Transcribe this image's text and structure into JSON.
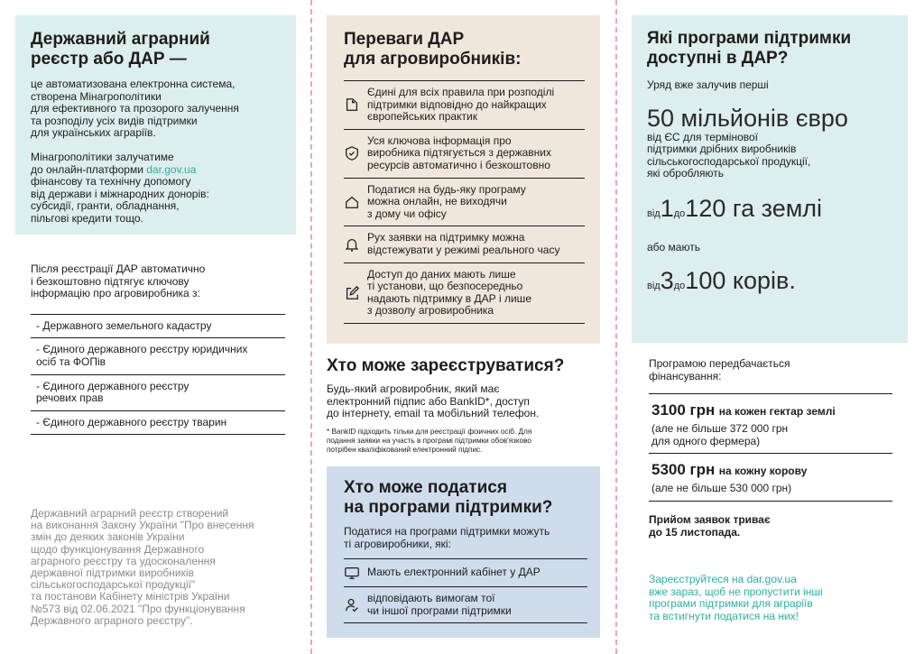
{
  "colors": {
    "teal_box": "#dceeed",
    "beige_box": "#efe6dc",
    "blue_box": "#cedcec",
    "accent_teal": "#2bb0a0",
    "divider_pink": "#e6a4c8"
  },
  "left": {
    "title": "Державний аграрний\nреєстр або ДАР —",
    "intro": "це автоматизована електронна система,\nстворена Мінагрополітики\nдля ефективного та прозорого залучення\nта розподілу усіх видів підтримки\nдля українських аграріїв.",
    "para2_before": "Мінагрополітики залучатиме\nдо онлайн-платформи ",
    "para2_link": "dar.gov.ua",
    "para2_after": "\nфінансову та технічну допомогу\nвід держави і міжнародних донорів:\nсубсидії, гранти, обладнання,\nпільгові кредити тощо.",
    "registry_intro": "Після реєстрації ДАР автоматично\nі безкоштовно підтягує ключову\nінформацію про агровиробника з:",
    "registries": [
      "- Державного земельного кадастру",
      "- Єдиного державного реєстру юридичних\n   осіб та ФОПів",
      "- Єдиного державного реєстру\n   речових прав",
      "- Єдиного державного реєстру тварин"
    ],
    "legal": "Державний аграрний реєстр створений\nна виконання Закону України \"Про внесення\nзмін до деяких законів України\nщодо функціонування Державного\nаграрного реєстру та удосконалення\nдержавної підтримки виробників\nсільськогосподарської продукції\"\nта постанови Кабінету міністрів України\n№573 від 02.06.2021 \"Про функціонування\nДержавного аграрного реєстру\"."
  },
  "middle": {
    "benefits_title": "Переваги ДАР\nдля агровиробників:",
    "benefits": [
      {
        "icon": "document-icon",
        "text": "Єдині для всіх правила при розподілі\nпідтримки відповідно до найкращих\nєвропейських практик"
      },
      {
        "icon": "shield-check-icon",
        "text": "Уся ключова інформація про\nвиробника підтягується з державних\nресурсів автоматично і безкоштовно"
      },
      {
        "icon": "home-icon",
        "text": "Податися на будь-яку програму\nможна онлайн, не виходячи\nз дому чи офісу"
      },
      {
        "icon": "bell-icon",
        "text": "Рух заявки на підтримку можна\nвідстежувати у режимі реального часу"
      },
      {
        "icon": "edit-icon",
        "text": "Доступ до даних мають лише\nті установи, що безпосередньо\nнадають підтримку в ДАР і лише\nз дозволу агровиробника"
      }
    ],
    "who_register_title": "Хто може зареєструватися?",
    "who_register_text": "Будь-який агровиробник, який має\nелектронний підпис або BankID*, доступ\nдо інтернету, email та мобільний телефон.",
    "footnote": "* BankID підходить тільки для реєстрації фізичних осіб. Для\nподання заявки на участь в програмі підтримки обов'язково\nпотрібен кваліфікований електронний підпис.",
    "who_apply_title": "Хто може податися\nна програми підтримки?",
    "who_apply_text": "Податися на програми підтримки можуть\nті агровиробники, які:",
    "conditions": [
      {
        "icon": "monitor-icon",
        "text": "Мають електронний кабінет у ДАР"
      },
      {
        "icon": "user-check-icon",
        "text": "відповідають вимогам тої\nчи іншої програми підтримки"
      }
    ]
  },
  "right": {
    "title": "Які програми підтримки\nдоступні в ДАР?",
    "gov_text": "Уряд вже залучив перші",
    "amount": "50 мільйонів євро",
    "amount_desc": "від ЄС для термінової\nпідтримки дрібних виробників\nсільськогосподарської продукції,\nякі обробляють",
    "land": {
      "from_word": "від",
      "from": "1",
      "to_word": "до",
      "to": "120",
      "unit": "га землі"
    },
    "or_text": "або мають",
    "cows": {
      "from_word": "від",
      "from": "3",
      "to_word": "до",
      "to": "100",
      "unit": "корів."
    },
    "funding_intro": "Програмою передбачається\nфінансування:",
    "funding": [
      {
        "amount": "3100 грн",
        "desc": "на кожен гектар землі",
        "note": "(але не більше 372 000 грн\nдля одного фермера)"
      },
      {
        "amount": "5300 грн",
        "desc": "на кожну корову",
        "note": "(але не більше 530 000 грн)"
      }
    ],
    "deadline": "Прийом заявок триває\nдо 15 листопада.",
    "cta": "Зареєструйтеся на dar.gov.ua\nвже зараз, щоб не пропустити інші\nпрограми підтримки для аграріїв\nта встигнути податися на них!"
  }
}
